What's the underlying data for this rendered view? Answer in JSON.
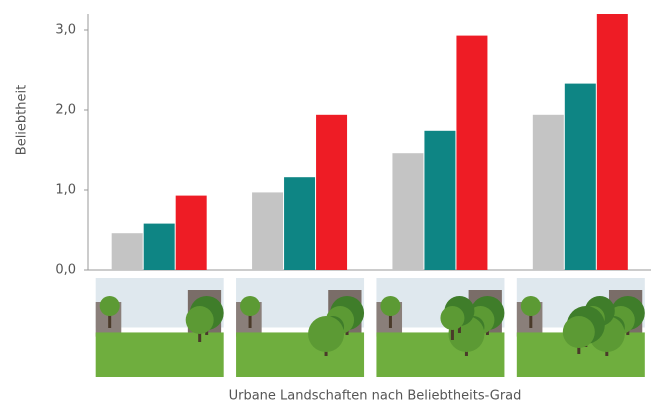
{
  "chart_data": {
    "type": "bar",
    "y_label": "Beliebtheit",
    "x_label": "Urbane Landschaften nach Beliebtheits-Grad",
    "categories": [
      null,
      null,
      null,
      null
    ],
    "series": [
      {
        "color": "#c4c4c4",
        "values": [
          0.46,
          0.97,
          1.46,
          1.94
        ]
      },
      {
        "color": "#0e8584",
        "values": [
          0.58,
          1.16,
          1.74,
          2.33
        ]
      },
      {
        "color": "#ee1c25",
        "values": [
          0.93,
          1.94,
          2.93,
          3.2
        ]
      }
    ],
    "ylim": [
      0,
      3.2
    ],
    "yticks": [
      {
        "value": 0,
        "label": "0,0"
      },
      {
        "value": 1,
        "label": "1,0"
      },
      {
        "value": 2,
        "label": "2,0"
      },
      {
        "value": 3,
        "label": "3,0"
      }
    ],
    "grid": false
  }
}
